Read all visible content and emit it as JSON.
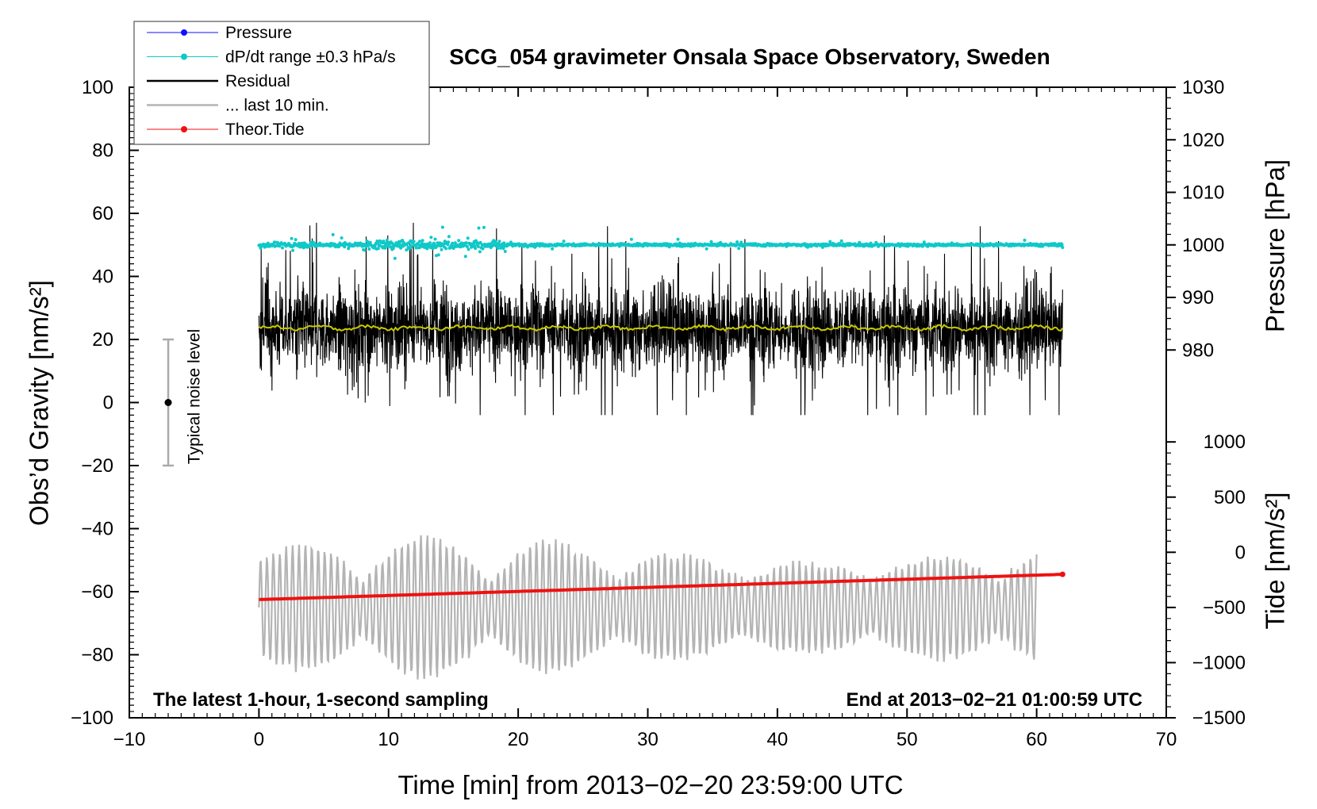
{
  "chart_data": {
    "type": "line",
    "title": "SCG_054 gravimeter Onsala Space Observatory, Sweden",
    "xlabel": "Time [min] from 2013−02−20 23:59:00 UTC",
    "ylabel_left": "Obs’d Gravity [nm/s²]",
    "ylabel_right_top": "Pressure [hPa]",
    "ylabel_right_bottom": "Tide [nm/s²]",
    "xlim": [
      -10,
      70
    ],
    "ylim_left": [
      -100,
      100
    ],
    "x_ticks": [
      "−10",
      "0",
      "10",
      "20",
      "30",
      "40",
      "50",
      "60",
      "70"
    ],
    "y_left_ticks": [
      "100",
      "80",
      "60",
      "40",
      "20",
      "0",
      "−20",
      "−40",
      "−60",
      "−80",
      "−100"
    ],
    "pressure_ticks": [
      "1030",
      "1020",
      "1010",
      "1000",
      "990",
      "980"
    ],
    "tide_ticks": [
      "1000",
      "500",
      "0",
      "−500",
      "−1000",
      "−1500"
    ],
    "pressure_ticks_values": [
      1030,
      1020,
      1010,
      1000,
      990,
      980
    ],
    "tide_ticks_values": [
      1000,
      500,
      0,
      -500,
      -1000,
      -1500
    ],
    "pressure_axis_range": [
      980,
      1030
    ],
    "tide_axis_range": [
      -1500,
      1000
    ],
    "legend": [
      {
        "label": "Pressure",
        "color": "#1010ff",
        "style": "line-dot"
      },
      {
        "label": "dP/dt range ±0.3 hPa/s",
        "color": "#10c8c8",
        "style": "line-dot"
      },
      {
        "label": "Residual",
        "color": "#000000",
        "style": "line"
      },
      {
        "label": "... last 10 min.",
        "color": "#b4b4b4",
        "style": "line"
      },
      {
        "label": "Theor.Tide",
        "color": "#ee1111",
        "style": "line-dot"
      }
    ],
    "annotations": {
      "noise": "Typical noise level",
      "left_note": "The latest 1-hour, 1-second sampling",
      "right_note": "End at 2013−02−21 01:00:59 UTC"
    },
    "series": [
      {
        "name": "dP/dt range",
        "x_range": [
          0,
          62
        ],
        "center": 50,
        "spread": 2.5,
        "color": "#10c8c8"
      },
      {
        "name": "Residual",
        "x_range": [
          0,
          62
        ],
        "center": 23.5,
        "envelope": [
          -4,
          57
        ],
        "color": "#000000"
      },
      {
        "name": "Smoothed residual",
        "x_range": [
          0,
          62
        ],
        "center": 23.7,
        "color": "#c8c800"
      },
      {
        "name": "last 10 min.",
        "x_range": [
          0,
          60
        ],
        "center": -65,
        "envelope": [
          -89,
          -33
        ],
        "color": "#b4b4b4"
      },
      {
        "name": "Theor.Tide",
        "x": [
          0,
          62
        ],
        "y": [
          -62.5,
          -54.5
        ],
        "color": "#ee1111"
      }
    ],
    "noise_bar": {
      "x": -7,
      "center": 0,
      "low": -20,
      "high": 20
    }
  }
}
